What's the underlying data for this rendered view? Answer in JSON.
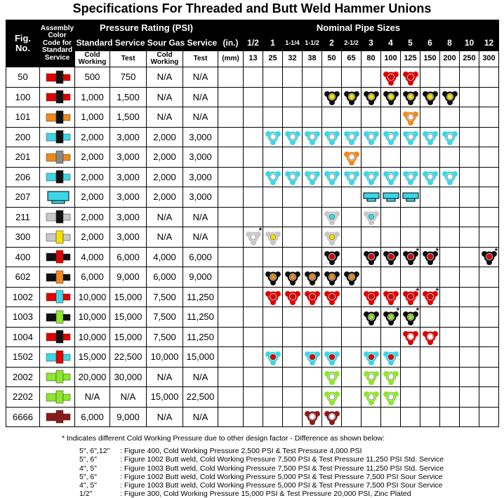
{
  "title": "Specifications For Threaded and Butt Weld Hammer Unions",
  "header": {
    "fig": "Fig. No.",
    "assembly": "Assembly Color Code for Standard Service",
    "pressure": "Pressure Rating (PSI)",
    "standard": "Standard Service",
    "sour": "Sour Gas Service",
    "cold": "Cold Working",
    "test": "Test",
    "sour_cold": "Cold Working",
    "sour_test": "Test",
    "nominal": "Nominal Pipe Sizes",
    "in_label": "(in.)",
    "mm_label": "(mm)",
    "sizes_in": [
      "1/2",
      "1",
      "1-1/4",
      "1-1/2",
      "2",
      "2-1/2",
      "3",
      "4",
      "5",
      "6",
      "8",
      "10",
      "12"
    ],
    "sizes_mm": [
      "13",
      "25",
      "32",
      "38",
      "50",
      "65",
      "80",
      "100",
      "125",
      "150",
      "200",
      "250",
      "300"
    ]
  },
  "rows": [
    {
      "fig": "50",
      "cold": "500",
      "test": "750",
      "sour_cold": "N/A",
      "sour_test": "N/A",
      "code": [
        "#e00000",
        "#111111"
      ],
      "lug": "#e00000",
      "dot": "#e00000",
      "sizes": [
        null,
        null,
        null,
        null,
        null,
        null,
        null,
        true,
        true,
        null,
        null,
        null,
        null
      ]
    },
    {
      "fig": "100",
      "cold": "1,000",
      "test": "1,500",
      "sour_cold": "N/A",
      "sour_test": "N/A",
      "code": [
        "#e00000",
        "#111111"
      ],
      "lug": "#111111",
      "dot": "#f4e000",
      "sizes": [
        null,
        null,
        null,
        null,
        true,
        true,
        true,
        true,
        true,
        true,
        true,
        null,
        null
      ]
    },
    {
      "fig": "101",
      "cold": "1,000",
      "test": "1,500",
      "sour_cold": "N/A",
      "sour_test": "N/A",
      "code": [
        "#f08a1c",
        "#111111"
      ],
      "lug": "#f08a1c",
      "dot": "#ffffff",
      "sizes": [
        null,
        null,
        null,
        null,
        null,
        null,
        null,
        null,
        true,
        null,
        null,
        null,
        null
      ]
    },
    {
      "fig": "200",
      "cold": "2,000",
      "test": "3,000",
      "sour_cold": "2,000",
      "sour_test": "3,000",
      "code": [
        "#3ed6e6",
        "#111111"
      ],
      "lug": "#3ed6e6",
      "dot": "#ffffff",
      "sizes": [
        null,
        true,
        true,
        true,
        true,
        true,
        true,
        true,
        true,
        true,
        true,
        null,
        null
      ]
    },
    {
      "fig": "201",
      "cold": "2,000",
      "test": "3,000",
      "sour_cold": "2,000",
      "sour_test": "3,000",
      "code": [
        "#f08a1c",
        "#888888"
      ],
      "lug": "#f08a1c",
      "dot": "#ffffff",
      "sizes": [
        null,
        null,
        null,
        null,
        null,
        true,
        null,
        null,
        null,
        null,
        null,
        null,
        null
      ]
    },
    {
      "fig": "206",
      "cold": "2,000",
      "test": "3,000",
      "sour_cold": "2,000",
      "sour_test": "3,000",
      "code": [
        "#3ed6e6",
        "#111111"
      ],
      "lug": "#3ed6e6",
      "dot": "#ffffff",
      "sizes": [
        null,
        true,
        true,
        true,
        true,
        true,
        true,
        true,
        true,
        true,
        true,
        null,
        null
      ]
    },
    {
      "fig": "207",
      "cold": "2,000",
      "test": "3,000",
      "sour_cold": "2,000",
      "sour_test": "3,000",
      "code": [
        "#3ed6e6",
        "#3ed6e6"
      ],
      "style": "weld",
      "lug": "#3ed6e6",
      "dot": "#3ed6e6",
      "sizes": [
        null,
        null,
        null,
        null,
        null,
        null,
        true,
        true,
        true,
        null,
        null,
        null,
        null
      ]
    },
    {
      "fig": "211",
      "cold": "2,000",
      "test": "3,000",
      "sour_cold": "N/A",
      "sour_test": "N/A",
      "code": [
        "#c8c8c8",
        "#111111"
      ],
      "lug": "#c8c8c8",
      "dot": "#3ed6e6",
      "sizes": [
        null,
        null,
        null,
        null,
        true,
        null,
        true,
        null,
        null,
        null,
        null,
        null,
        null
      ]
    },
    {
      "fig": "300",
      "cold": "2,000",
      "test": "3,000",
      "sour_cold": "N/A",
      "sour_test": "N/A",
      "code": [
        "#c8c8c8",
        "#f4e000"
      ],
      "lug": "#c8c8c8",
      "dot": "#f4e000",
      "sizes": [
        {
          "dot": "#ffffff",
          "note": "*"
        },
        true,
        null,
        null,
        true,
        null,
        null,
        null,
        null,
        null,
        null,
        null,
        null
      ]
    },
    {
      "fig": "400",
      "cold": "4,000",
      "test": "6,000",
      "sour_cold": "4,000",
      "sour_test": "6,000",
      "code": [
        "#111111",
        "#e00000"
      ],
      "lug": "#111111",
      "dot": "#e00000",
      "sizes": [
        null,
        null,
        null,
        null,
        true,
        null,
        true,
        true,
        {
          "note": "*"
        },
        {
          "note": "*"
        },
        null,
        null,
        {
          "note": "*"
        }
      ]
    },
    {
      "fig": "602",
      "cold": "6,000",
      "test": "9,000",
      "sour_cold": "6,000",
      "sour_test": "9,000",
      "code": [
        "#111111",
        "#f08a1c"
      ],
      "lug": "#111111",
      "dot": "#f08a1c",
      "sizes": [
        null,
        true,
        true,
        true,
        true,
        true,
        null,
        null,
        null,
        null,
        null,
        null,
        null
      ]
    },
    {
      "fig": "1002",
      "cold": "10,000",
      "test": "15,000",
      "sour_cold": "7,500",
      "sour_test": "11,250",
      "code": [
        "#e00000",
        "#3ed6e6"
      ],
      "lug": "#e00000",
      "dot": "#e00000",
      "sizes": [
        null,
        true,
        true,
        true,
        true,
        null,
        true,
        true,
        {
          "note": "*"
        },
        {
          "note": "*"
        },
        null,
        null,
        null
      ]
    },
    {
      "fig": "1003",
      "cold": "10,000",
      "test": "15,000",
      "sour_cold": "7,500",
      "sour_test": "11,250",
      "code": [
        "#111111",
        "#8ee62e"
      ],
      "lug": "#111111",
      "dot": "#8ee62e",
      "sizes": [
        null,
        null,
        null,
        null,
        null,
        null,
        true,
        {
          "note": "*"
        },
        {
          "note": "*"
        },
        null,
        null,
        null,
        null
      ]
    },
    {
      "fig": "1004",
      "cold": "10,000",
      "test": "15,000",
      "sour_cold": "7,500",
      "sour_test": "11,250",
      "code": [
        "#e00000",
        "#111111"
      ],
      "lug": "#e00000",
      "dot": "#ffffff",
      "sizes": [
        null,
        null,
        null,
        null,
        null,
        null,
        null,
        null,
        true,
        true,
        null,
        null,
        null
      ]
    },
    {
      "fig": "1502",
      "cold": "15,000",
      "test": "22,500",
      "sour_cold": "10,000",
      "sour_test": "15,000",
      "code": [
        "#3ed6e6",
        "#e00000"
      ],
      "lug": "#3ed6e6",
      "dot": "#e00000",
      "sizes": [
        null,
        true,
        null,
        true,
        true,
        null,
        true,
        true,
        null,
        null,
        null,
        null,
        null
      ]
    },
    {
      "fig": "2002",
      "cold": "20,000",
      "test": "30,000",
      "sour_cold": "N/A",
      "sour_test": "N/A",
      "code": [
        "#8ee62e",
        "#8ee62e"
      ],
      "lug": "#8ee62e",
      "dot": "#ffffff",
      "sizes": [
        null,
        null,
        null,
        null,
        true,
        null,
        true,
        true,
        null,
        null,
        null,
        null,
        null
      ]
    },
    {
      "fig": "2202",
      "cold": "N/A",
      "test": "N/A",
      "sour_cold": "15,000",
      "sour_test": "22,500",
      "code": [
        "#8ee62e",
        "#8ee62e"
      ],
      "lug": "#8ee62e",
      "dot": "#ffffff",
      "sizes": [
        null,
        null,
        null,
        null,
        true,
        null,
        true,
        true,
        null,
        null,
        null,
        null,
        null
      ]
    },
    {
      "fig": "6666",
      "cold": "6,000",
      "test": "9,000",
      "sour_cold": "N/A",
      "sour_test": "N/A",
      "code": [
        "#8b1a1a",
        "#8b1a1a"
      ],
      "lug": "#8b1a1a",
      "dot": "#ffffff",
      "sizes": [
        null,
        null,
        null,
        true,
        true,
        null,
        null,
        null,
        null,
        null,
        null,
        null,
        null
      ]
    }
  ],
  "notes": {
    "intro": "* Indicates different Cold Working Pressure due to other design factor - Difference as shown below:",
    "lines": [
      {
        "sizes": "5\", 6\",12\"",
        "text": ": Figure 400, Cold Working Pressure 2,500 PSI & Test Pressure 4,000 PSI"
      },
      {
        "sizes": "5\", 6\"",
        "text": ": Figure 1002 Butt weld, Cold Working Pressure 7,500 PSI & Test Pressure 11,250 PSI Std. Service"
      },
      {
        "sizes": "4\", 5\"",
        "text": ": Figure 1003 Butt weld, Cold Working Pressure 7,500 PSI & Test Pressure 11,250 PSI Std. Service"
      },
      {
        "sizes": "5\", 6\"",
        "text": ": Figure 1002 Butt weld, Cold Working Pressure 5,000 PSI & Test Pressure 7,500 PSI Sour Service"
      },
      {
        "sizes": "4\", 5\"",
        "text": ": Figure 1003 Butt weld, Cold Working Pressure 5,000 PSI & Test Pressure 7,500 PSI Sour Service"
      },
      {
        "sizes": "1/2\"",
        "text": ": Figure 300, Cold Working Pressure 15,000 PSI & Test Pressure 20,000 PSI, Zinc Plated"
      }
    ]
  }
}
